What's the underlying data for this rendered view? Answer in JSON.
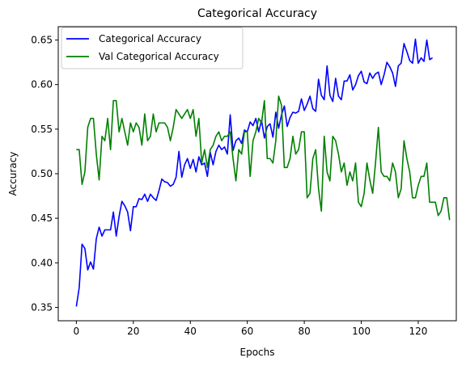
{
  "chart_data": {
    "type": "line",
    "title": "Categorical Accuracy",
    "xlabel": "Epochs",
    "ylabel": "Accuracy",
    "xlim": [
      -6.35,
      133.35
    ],
    "ylim": [
      0.335,
      0.665
    ],
    "xticks": [
      0,
      20,
      40,
      60,
      80,
      100,
      120
    ],
    "yticks": [
      0.35,
      0.4,
      0.45,
      0.5,
      0.55,
      0.6,
      0.65
    ],
    "ytick_labels": [
      "0.35",
      "0.40",
      "0.45",
      "0.50",
      "0.55",
      "0.60",
      "0.65"
    ],
    "grid": false,
    "legend_position": "upper-left",
    "series": [
      {
        "name": "Categorical Accuracy",
        "color": "#0000ff",
        "values": [
          0.351,
          0.372,
          0.421,
          0.416,
          0.392,
          0.401,
          0.393,
          0.427,
          0.44,
          0.43,
          0.437,
          0.437,
          0.437,
          0.457,
          0.43,
          0.452,
          0.469,
          0.464,
          0.457,
          0.436,
          0.463,
          0.463,
          0.472,
          0.471,
          0.477,
          0.469,
          0.477,
          0.473,
          0.47,
          0.481,
          0.494,
          0.491,
          0.49,
          0.486,
          0.488,
          0.496,
          0.525,
          0.496,
          0.51,
          0.517,
          0.506,
          0.516,
          0.502,
          0.519,
          0.51,
          0.512,
          0.497,
          0.524,
          0.51,
          0.525,
          0.532,
          0.527,
          0.53,
          0.522,
          0.566,
          0.526,
          0.537,
          0.54,
          0.534,
          0.549,
          0.547,
          0.558,
          0.554,
          0.562,
          0.547,
          0.56,
          0.54,
          0.553,
          0.556,
          0.541,
          0.569,
          0.551,
          0.566,
          0.576,
          0.553,
          0.563,
          0.569,
          0.568,
          0.57,
          0.584,
          0.571,
          0.578,
          0.587,
          0.573,
          0.57,
          0.606,
          0.588,
          0.583,
          0.621,
          0.588,
          0.581,
          0.607,
          0.587,
          0.583,
          0.604,
          0.604,
          0.611,
          0.594,
          0.6,
          0.61,
          0.615,
          0.603,
          0.601,
          0.613,
          0.607,
          0.612,
          0.614,
          0.6,
          0.611,
          0.625,
          0.62,
          0.613,
          0.598,
          0.621,
          0.624,
          0.646,
          0.637,
          0.627,
          0.624,
          0.651,
          0.624,
          0.63,
          0.626,
          0.65,
          0.628,
          0.63
        ]
      },
      {
        "name": "Val Categorical Accuracy",
        "color": "#008000",
        "values": [
          0.527,
          0.527,
          0.488,
          0.502,
          0.552,
          0.562,
          0.562,
          0.522,
          0.493,
          0.542,
          0.537,
          0.562,
          0.527,
          0.582,
          0.582,
          0.547,
          0.562,
          0.547,
          0.532,
          0.557,
          0.547,
          0.557,
          0.552,
          0.532,
          0.567,
          0.537,
          0.542,
          0.567,
          0.547,
          0.557,
          0.557,
          0.557,
          0.552,
          0.537,
          0.552,
          0.572,
          0.567,
          0.562,
          0.567,
          0.572,
          0.562,
          0.572,
          0.542,
          0.562,
          0.512,
          0.527,
          0.507,
          0.527,
          0.532,
          0.542,
          0.547,
          0.537,
          0.542,
          0.542,
          0.547,
          0.517,
          0.492,
          0.527,
          0.522,
          0.547,
          0.547,
          0.497,
          0.537,
          0.547,
          0.562,
          0.557,
          0.582,
          0.517,
          0.517,
          0.512,
          0.537,
          0.587,
          0.577,
          0.507,
          0.507,
          0.517,
          0.542,
          0.522,
          0.527,
          0.547,
          0.547,
          0.473,
          0.478,
          0.517,
          0.527,
          0.483,
          0.458,
          0.542,
          0.502,
          0.492,
          0.542,
          0.537,
          0.522,
          0.502,
          0.512,
          0.487,
          0.502,
          0.492,
          0.512,
          0.468,
          0.463,
          0.478,
          0.512,
          0.493,
          0.478,
          0.512,
          0.552,
          0.502,
          0.497,
          0.497,
          0.492,
          0.512,
          0.502,
          0.473,
          0.483,
          0.537,
          0.517,
          0.502,
          0.473,
          0.473,
          0.487,
          0.497,
          0.497,
          0.512,
          0.468,
          0.468,
          0.468,
          0.453,
          0.458,
          0.473,
          0.473,
          0.448
        ]
      }
    ]
  }
}
